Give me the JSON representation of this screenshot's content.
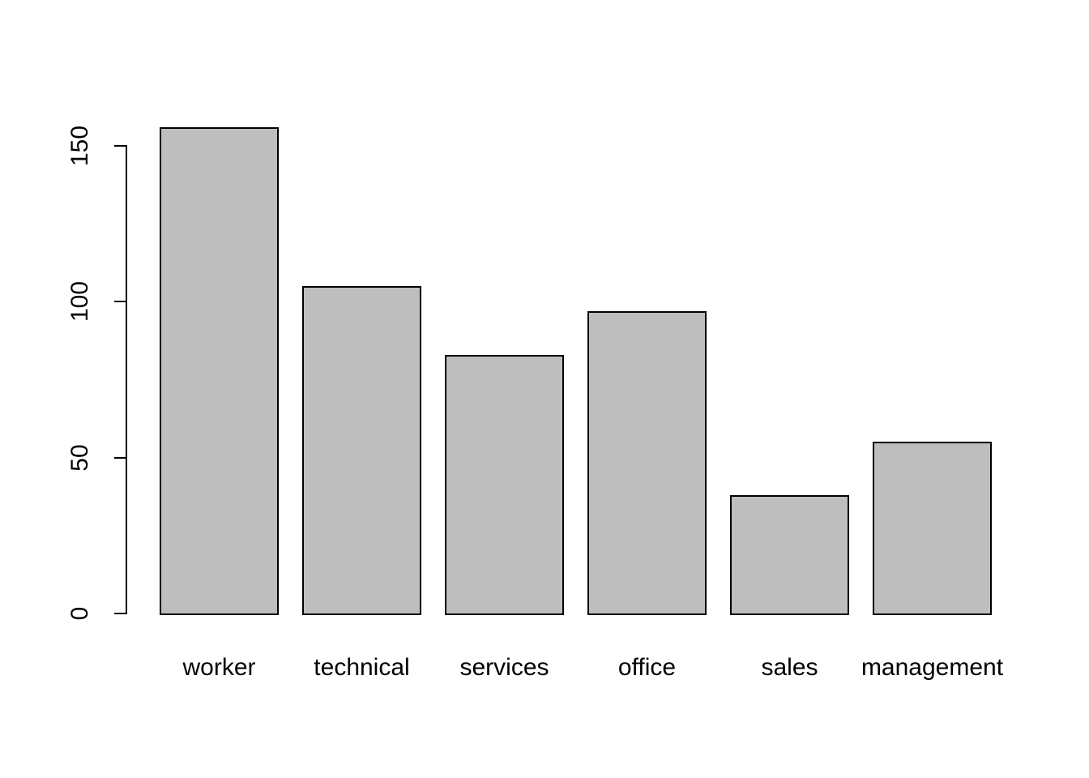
{
  "figure": {
    "background": "#ffffff",
    "axis_color": "#000000",
    "text_color": "#000000"
  },
  "chart_data": {
    "type": "bar",
    "title": "",
    "xlabel": "",
    "ylabel": "",
    "categories": [
      "worker",
      "technical",
      "services",
      "office",
      "sales",
      "management"
    ],
    "values": [
      156,
      105,
      83,
      97,
      38,
      55
    ],
    "yticks": [
      0,
      50,
      100,
      150
    ],
    "ylim": [
      0,
      160
    ],
    "grid": false,
    "legend": "none",
    "bar_fill": "#bebebe",
    "bar_border": "#000000"
  }
}
